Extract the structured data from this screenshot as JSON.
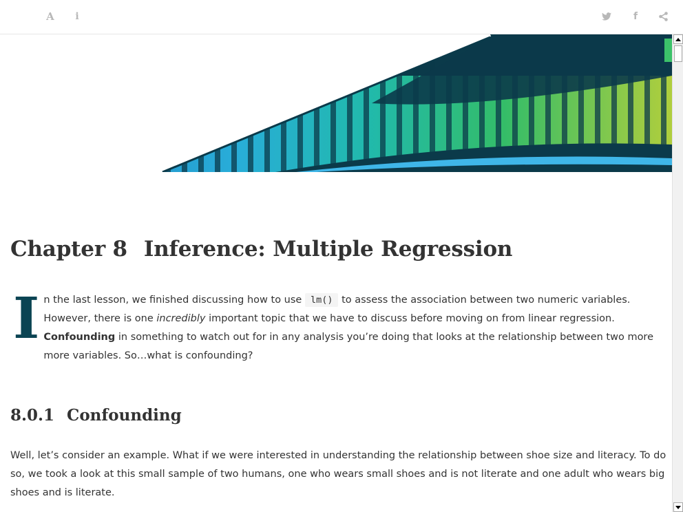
{
  "toolbar": {
    "font_icon_glyph": "A",
    "info_icon_glyph": "i",
    "facebook_icon_glyph": "f"
  },
  "chapter": {
    "number": "Chapter 8",
    "title": "Inference: Multiple Regression"
  },
  "intro": {
    "dropcap": "I",
    "part1": "n the last lesson, we finished discussing how to use",
    "code": "lm()",
    "part2": "to assess the association between two numeric variables. However, there is one",
    "emphasis": "incredibly",
    "part3": "important topic that we have to discuss before moving on from linear regression.",
    "bold": "Confounding",
    "part4": "in something to watch out for in any analysis you’re doing that looks at the relationship between two more more variables. So…what is confounding?"
  },
  "section": {
    "number": "8.0.1",
    "title": "Confounding"
  },
  "para2": "Well, let’s consider an example. What if we were interested in understanding the relationship between shoe size and literacy. To do so, we took a look at this small sample of two humans, one who wears small shoes and is not literate and one adult who wears big shoes and is literate.",
  "colors": {
    "dropcap": "#0b4453",
    "banner_dark": "#0b3a4a",
    "banner_blue": "#29a3d8",
    "banner_teal": "#1fb8a8",
    "banner_green": "#3cc26a",
    "banner_lime": "#b5d33a"
  },
  "icons": [
    "font-size-icon",
    "info-icon",
    "twitter-icon",
    "facebook-icon",
    "share-icon"
  ]
}
